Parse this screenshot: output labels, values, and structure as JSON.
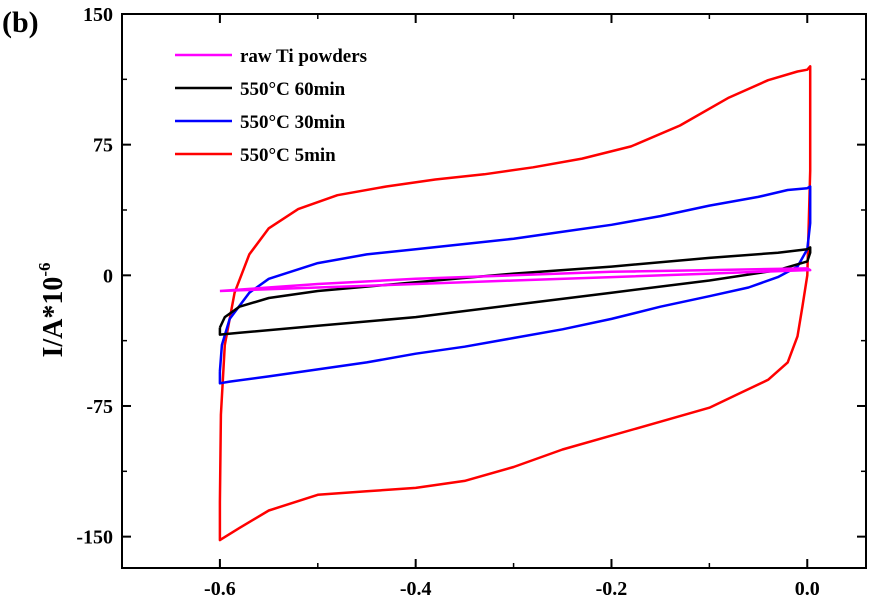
{
  "panel_label": "(b)",
  "chart_data": {
    "type": "line",
    "ylabel_main": "I/A*10",
    "ylabel_exp": "-6",
    "xlim": [
      -0.7,
      0.06
    ],
    "ylim": [
      -168,
      150
    ],
    "xticks": [
      -0.6,
      -0.4,
      -0.2,
      0.0
    ],
    "xtick_labels": [
      "-0.6",
      "-0.4",
      "-0.2",
      "0.0"
    ],
    "yticks": [
      -150,
      -75,
      0,
      75,
      150
    ],
    "ytick_labels": [
      "-150",
      "-75",
      "0",
      "75",
      "150"
    ],
    "grid": false,
    "legend_position": "top-left",
    "series": [
      {
        "name": "raw Ti powders",
        "color": "#ff00ff",
        "x": [
          -0.6,
          -0.5,
          -0.4,
          -0.3,
          -0.2,
          -0.1,
          0.0,
          0.003,
          0.0,
          -0.1,
          -0.2,
          -0.3,
          -0.4,
          -0.5,
          -0.6,
          -0.6
        ],
        "y": [
          -9,
          -7,
          -5,
          -3,
          -1,
          1,
          3,
          3,
          4,
          3,
          2,
          0,
          -2,
          -5,
          -9,
          -9
        ]
      },
      {
        "name": "550°C 60min",
        "color": "#000000",
        "x": [
          -0.6,
          -0.595,
          -0.58,
          -0.55,
          -0.5,
          -0.4,
          -0.3,
          -0.2,
          -0.1,
          -0.03,
          0.0,
          0.003,
          0.003,
          0.0,
          -0.03,
          -0.1,
          -0.2,
          -0.3,
          -0.4,
          -0.5,
          -0.58,
          -0.6,
          -0.6
        ],
        "y": [
          -30,
          -24,
          -18,
          -13,
          -9,
          -4,
          1,
          5,
          10,
          13,
          15,
          16,
          13,
          8,
          3,
          -3,
          -10,
          -17,
          -24,
          -29,
          -33,
          -34,
          -30
        ]
      },
      {
        "name": "550°C 30min",
        "color": "#0000ff",
        "x": [
          -0.6,
          -0.598,
          -0.59,
          -0.57,
          -0.55,
          -0.5,
          -0.45,
          -0.4,
          -0.35,
          -0.3,
          -0.25,
          -0.2,
          -0.15,
          -0.1,
          -0.05,
          -0.02,
          0.0,
          0.003,
          0.003,
          0.0,
          -0.01,
          -0.03,
          -0.06,
          -0.1,
          -0.15,
          -0.2,
          -0.25,
          -0.3,
          -0.35,
          -0.4,
          -0.45,
          -0.5,
          -0.55,
          -0.59,
          -0.6,
          -0.6
        ],
        "y": [
          -55,
          -40,
          -25,
          -10,
          -2,
          7,
          12,
          15,
          18,
          21,
          25,
          29,
          34,
          40,
          45,
          49,
          50,
          51,
          30,
          15,
          5,
          -1,
          -7,
          -12,
          -18,
          -25,
          -31,
          -36,
          -41,
          -45,
          -50,
          -54,
          -58,
          -61,
          -62,
          -55
        ]
      },
      {
        "name": "550°C 5min",
        "color": "#ff0000",
        "x": [
          -0.6,
          -0.599,
          -0.595,
          -0.585,
          -0.57,
          -0.55,
          -0.52,
          -0.48,
          -0.43,
          -0.38,
          -0.33,
          -0.28,
          -0.23,
          -0.18,
          -0.13,
          -0.08,
          -0.04,
          -0.01,
          0.0,
          0.003,
          0.003,
          0.0,
          -0.005,
          -0.01,
          -0.02,
          -0.04,
          -0.07,
          -0.1,
          -0.15,
          -0.2,
          -0.25,
          -0.3,
          -0.35,
          -0.4,
          -0.45,
          -0.5,
          -0.55,
          -0.58,
          -0.6,
          -0.6
        ],
        "y": [
          -130,
          -80,
          -40,
          -10,
          12,
          27,
          38,
          46,
          51,
          55,
          58,
          62,
          67,
          74,
          86,
          102,
          112,
          117,
          118,
          120,
          60,
          0,
          -18,
          -35,
          -50,
          -60,
          -68,
          -76,
          -84,
          -92,
          -100,
          -110,
          -118,
          -122,
          -124,
          -126,
          -135,
          -145,
          -152,
          -130
        ]
      }
    ]
  }
}
